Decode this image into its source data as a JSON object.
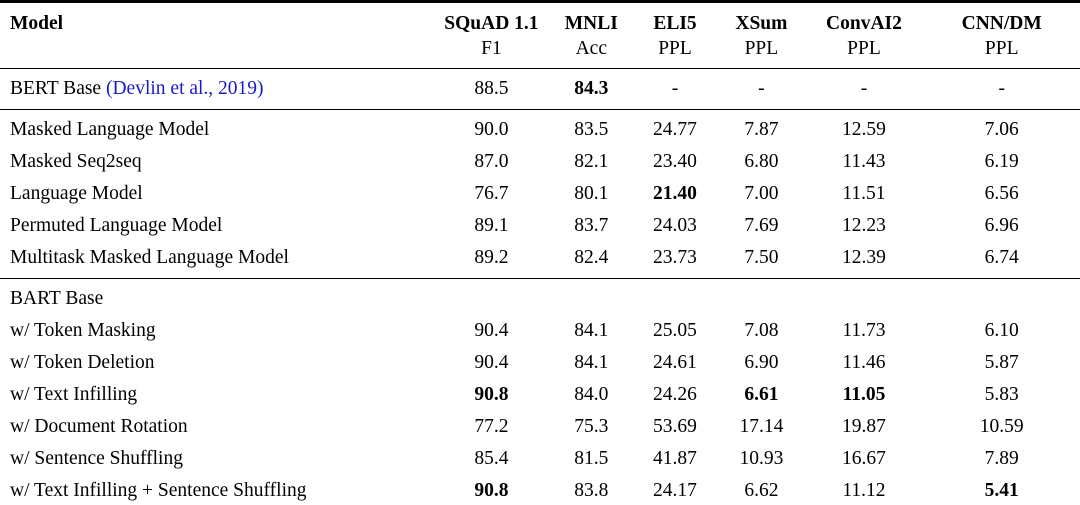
{
  "colors": {
    "text": "#000000",
    "citation": "#1A1AC8",
    "rule": "#000000",
    "background": "#FFFFFF"
  },
  "table": {
    "columns": [
      {
        "id": "model",
        "label": "Model",
        "sublabel": ""
      },
      {
        "id": "squad",
        "label": "SQuAD 1.1",
        "sublabel": "F1"
      },
      {
        "id": "mnli",
        "label": "MNLI",
        "sublabel": "Acc"
      },
      {
        "id": "eli5",
        "label": "ELI5",
        "sublabel": "PPL"
      },
      {
        "id": "xsum",
        "label": "XSum",
        "sublabel": "PPL"
      },
      {
        "id": "convai2",
        "label": "ConvAI2",
        "sublabel": "PPL"
      },
      {
        "id": "cnndm",
        "label": "CNN/DM",
        "sublabel": "PPL"
      }
    ],
    "groups": [
      {
        "rows": [
          {
            "model": "BERT Base ",
            "citation": "(Devlin et al., 2019)",
            "values": [
              "88.5",
              "84.3",
              "-",
              "-",
              "-",
              "-"
            ],
            "bold": [
              false,
              true,
              false,
              false,
              false,
              false
            ]
          }
        ]
      },
      {
        "rows": [
          {
            "model": "Masked Language Model",
            "values": [
              "90.0",
              "83.5",
              "24.77",
              "7.87",
              "12.59",
              "7.06"
            ],
            "bold": [
              false,
              false,
              false,
              false,
              false,
              false
            ]
          },
          {
            "model": "Masked Seq2seq",
            "values": [
              "87.0",
              "82.1",
              "23.40",
              "6.80",
              "11.43",
              "6.19"
            ],
            "bold": [
              false,
              false,
              false,
              false,
              false,
              false
            ]
          },
          {
            "model": "Language Model",
            "values": [
              "76.7",
              "80.1",
              "21.40",
              "7.00",
              "11.51",
              "6.56"
            ],
            "bold": [
              false,
              false,
              true,
              false,
              false,
              false
            ]
          },
          {
            "model": "Permuted Language Model",
            "values": [
              "89.1",
              "83.7",
              "24.03",
              "7.69",
              "12.23",
              "6.96"
            ],
            "bold": [
              false,
              false,
              false,
              false,
              false,
              false
            ]
          },
          {
            "model": "Multitask Masked Language Model",
            "values": [
              "89.2",
              "82.4",
              "23.73",
              "7.50",
              "12.39",
              "6.74"
            ],
            "bold": [
              false,
              false,
              false,
              false,
              false,
              false
            ]
          }
        ]
      },
      {
        "rows": [
          {
            "model": "BART Base",
            "values": [
              "",
              "",
              "",
              "",
              "",
              ""
            ],
            "bold": [
              false,
              false,
              false,
              false,
              false,
              false
            ]
          },
          {
            "model": "w/ Token Masking",
            "values": [
              "90.4",
              "84.1",
              "25.05",
              "7.08",
              "11.73",
              "6.10"
            ],
            "bold": [
              false,
              false,
              false,
              false,
              false,
              false
            ]
          },
          {
            "model": "w/ Token Deletion",
            "values": [
              "90.4",
              "84.1",
              "24.61",
              "6.90",
              "11.46",
              "5.87"
            ],
            "bold": [
              false,
              false,
              false,
              false,
              false,
              false
            ]
          },
          {
            "model": "w/ Text Infilling",
            "values": [
              "90.8",
              "84.0",
              "24.26",
              "6.61",
              "11.05",
              "5.83"
            ],
            "bold": [
              true,
              false,
              false,
              true,
              true,
              false
            ]
          },
          {
            "model": "w/ Document Rotation",
            "values": [
              "77.2",
              "75.3",
              "53.69",
              "17.14",
              "19.87",
              "10.59"
            ],
            "bold": [
              false,
              false,
              false,
              false,
              false,
              false
            ]
          },
          {
            "model": "w/ Sentence Shuffling",
            "values": [
              "85.4",
              "81.5",
              "41.87",
              "10.93",
              "16.67",
              "7.89"
            ],
            "bold": [
              false,
              false,
              false,
              false,
              false,
              false
            ]
          },
          {
            "model": "w/ Text Infilling + Sentence Shuffling",
            "values": [
              "90.8",
              "83.8",
              "24.17",
              "6.62",
              "11.12",
              "5.41"
            ],
            "bold": [
              true,
              false,
              false,
              false,
              false,
              true
            ]
          }
        ]
      }
    ]
  }
}
